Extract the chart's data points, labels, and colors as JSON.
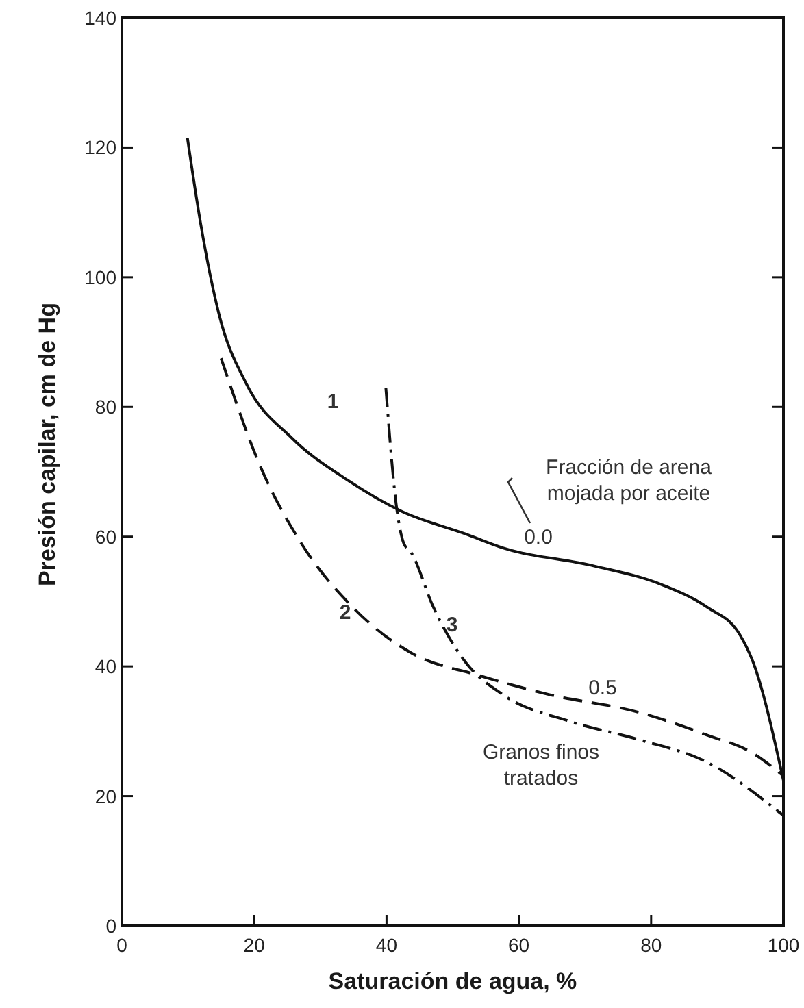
{
  "chart_data": {
    "type": "line",
    "xlabel": "Saturación de agua, %",
    "ylabel": "Presión capilar, cm de Hg",
    "xlim": [
      0,
      100
    ],
    "ylim": [
      0,
      140
    ],
    "xticks": [
      0,
      20,
      40,
      60,
      80,
      100
    ],
    "yticks": [
      0,
      20,
      40,
      60,
      80,
      100,
      120,
      140
    ],
    "grid": false,
    "marker": "none",
    "series": [
      {
        "name": "1",
        "color": "#111111",
        "line_style": "solid",
        "x": [
          9.9,
          11.9,
          14.7,
          18.8,
          25.7,
          34,
          42.3,
          52,
          57.5,
          71.3,
          81.6,
          88.5,
          93.4,
          95.4,
          100
        ],
        "values": [
          121.5,
          108.3,
          94.2,
          83.6,
          75.2,
          68.8,
          63.9,
          60.4,
          58.3,
          55.5,
          52.6,
          49.1,
          44.9,
          40.7,
          22.4
        ]
      },
      {
        "name": "2",
        "color": "#111111",
        "line_style": "dashed",
        "x": [
          15,
          20.9,
          27.1,
          35,
          43.7,
          54,
          64.4,
          78.2,
          88.5,
          95.4,
          100
        ],
        "values": [
          87.5,
          70.9,
          59,
          49,
          42.1,
          38.6,
          35.7,
          32.9,
          29.4,
          26.6,
          23.1
        ]
      },
      {
        "name": "3",
        "color": "#111111",
        "line_style": "dashdot",
        "x": [
          39.9,
          41.6,
          42.6,
          43.7,
          47.1,
          51.9,
          57.5,
          67.8,
          78.2,
          88.5,
          100
        ],
        "values": [
          82.9,
          63.9,
          59,
          57.6,
          49.1,
          40.7,
          35.7,
          31.5,
          28.7,
          25.2,
          17
        ]
      }
    ],
    "annotations": [
      "0.0",
      "0.5",
      "Fracción de arena\nmojada por aceite",
      "Granos finos\ntratados"
    ]
  }
}
